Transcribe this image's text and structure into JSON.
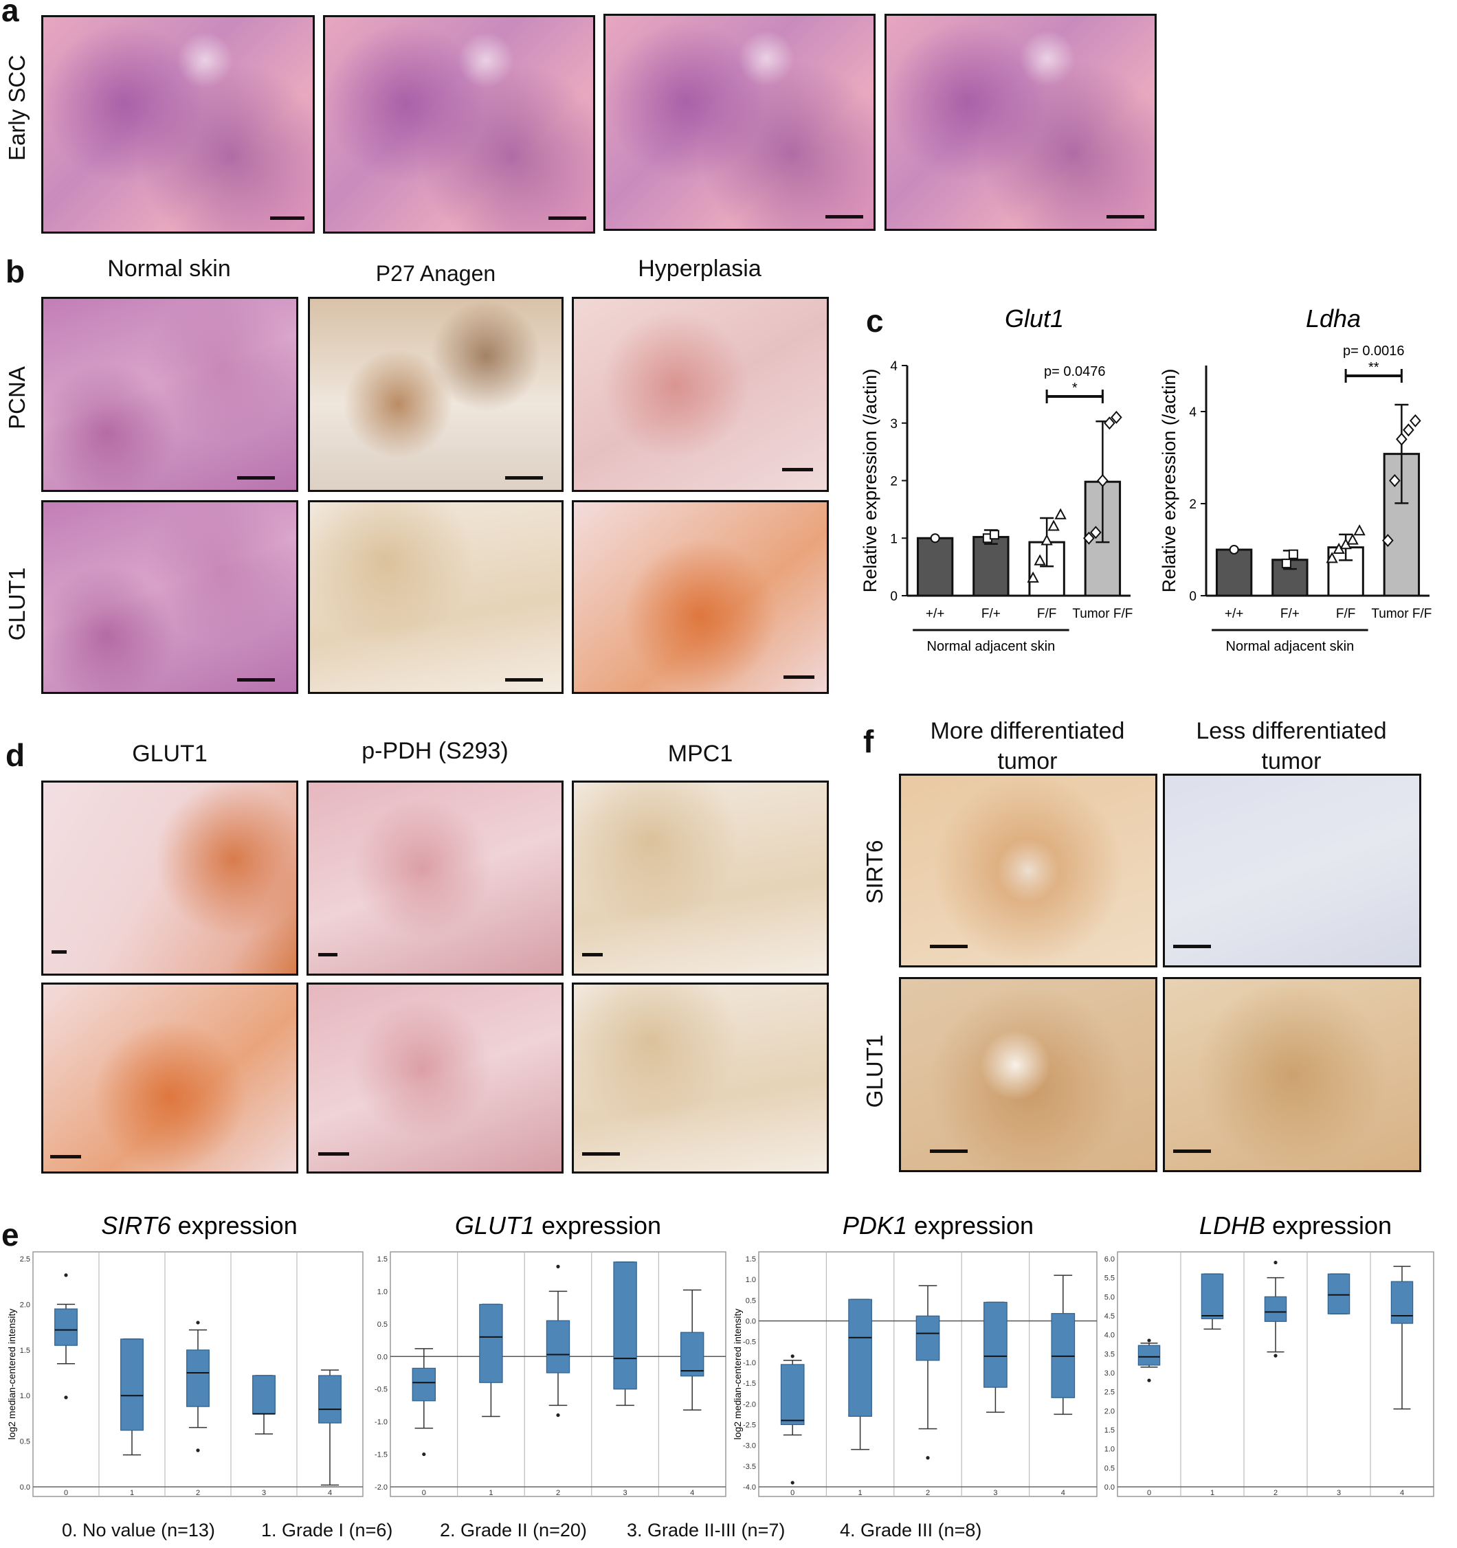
{
  "panels": {
    "a": {
      "label": "a",
      "row_label": "Early SCC"
    },
    "b": {
      "label": "b",
      "columns": [
        "Normal skin",
        "P27 Anagen",
        "Hyperplasia"
      ],
      "rows": [
        "PCNA",
        "GLUT1"
      ]
    },
    "c": {
      "label": "c"
    },
    "d": {
      "label": "d",
      "columns": [
        "GLUT1",
        "p-PDH (S293)",
        "MPC1"
      ]
    },
    "e": {
      "label": "e",
      "legend": [
        "0. No value (n=13)",
        "1. Grade I (n=6)",
        "2. Grade II (n=20)",
        "3. Grade II-III (n=7)",
        "4. Grade III (n=8)"
      ]
    },
    "f": {
      "label": "f",
      "columns": [
        "More differentiated tumor",
        "Less differentiated tumor"
      ],
      "rows": [
        "SIRT6",
        "GLUT1"
      ]
    }
  },
  "colors": {
    "dark_bar": "#555555",
    "white_bar": "#ffffff",
    "tumor_bar": "#bcbcbc",
    "box_fill": "#4e86b8"
  },
  "chart_data": [
    {
      "type": "bar",
      "gene": "Glut1",
      "ylabel": "Relative expression (/actin)",
      "categories": [
        "+/+",
        "F/+",
        "F/F",
        "Tumor F/F"
      ],
      "group_label": "Normal adjacent skin",
      "values": [
        1.0,
        1.02,
        0.93,
        1.98
      ],
      "errors": [
        0,
        0.12,
        0.42,
        1.05
      ],
      "ylim": [
        0,
        4
      ],
      "yticks": [
        "0",
        "1",
        "2",
        "3",
        "4"
      ],
      "points": [
        [
          1.0
        ],
        [
          1.0,
          1.06
        ],
        [
          0.3,
          0.6,
          0.95,
          1.2,
          1.4
        ],
        [
          1.0,
          1.1,
          2.0,
          3.0,
          3.1
        ]
      ],
      "pvalue": "p= 0.0476",
      "stars": "*"
    },
    {
      "type": "bar",
      "gene": "Ldha",
      "ylabel": "Relative expression (/actin)",
      "categories": [
        "+/+",
        "F/+",
        "F/F",
        "Tumor F/F"
      ],
      "group_label": "Normal adjacent skin",
      "values": [
        1.0,
        0.78,
        1.05,
        3.08
      ],
      "errors": [
        0,
        0.2,
        0.28,
        1.07
      ],
      "ylim": [
        0,
        5
      ],
      "yticks": [
        "0",
        "2",
        "4"
      ],
      "points": [
        [
          1.0
        ],
        [
          0.7,
          0.9
        ],
        [
          0.8,
          1.0,
          1.1,
          1.2,
          1.4
        ],
        [
          1.2,
          2.5,
          3.4,
          3.6,
          3.8
        ]
      ],
      "pvalue": "p= 0.0016",
      "stars": "**"
    },
    {
      "type": "box",
      "gene": "SIRT6",
      "title_suffix": " expression",
      "ylabel": "log2 median-centered intensity",
      "ylim": [
        0,
        2.5
      ],
      "yticks": [
        "0.0",
        "0.5",
        "1.0",
        "1.5",
        "2.0",
        "2.5"
      ],
      "categories": [
        "0",
        "1",
        "2",
        "3",
        "4"
      ],
      "boxes": [
        {
          "min": 1.35,
          "q1": 1.55,
          "median": 1.72,
          "q3": 1.95,
          "max": 2.0,
          "outliers": [
            0.98,
            2.32
          ]
        },
        {
          "min": 0.35,
          "q1": 0.62,
          "median": 1.0,
          "q3": 1.62,
          "max": 1.62,
          "outliers": []
        },
        {
          "min": 0.65,
          "q1": 0.88,
          "median": 1.25,
          "q3": 1.5,
          "max": 1.72,
          "outliers": [
            0.4,
            1.8
          ]
        },
        {
          "min": 0.58,
          "q1": 0.8,
          "median": 0.8,
          "q3": 1.22,
          "max": 1.22,
          "outliers": []
        },
        {
          "min": 0.02,
          "q1": 0.7,
          "median": 0.85,
          "q3": 1.22,
          "max": 1.28,
          "outliers": []
        }
      ]
    },
    {
      "type": "box",
      "gene": "GLUT1",
      "title_suffix": " expression",
      "ylabel": "",
      "ylim": [
        -2.0,
        1.5
      ],
      "yticks": [
        "-2.0",
        "-1.5",
        "-1.0",
        "-0.5",
        "0.0",
        "0.5",
        "1.0",
        "1.5"
      ],
      "zero_line": 0,
      "categories": [
        "0",
        "1",
        "2",
        "3",
        "4"
      ],
      "boxes": [
        {
          "min": -1.1,
          "q1": -0.68,
          "median": -0.4,
          "q3": -0.18,
          "max": 0.12,
          "outliers": [
            -1.5
          ]
        },
        {
          "min": -0.92,
          "q1": -0.4,
          "median": 0.3,
          "q3": 0.8,
          "max": 0.8,
          "outliers": []
        },
        {
          "min": -0.75,
          "q1": -0.25,
          "median": 0.03,
          "q3": 0.55,
          "max": 1.0,
          "outliers": [
            -0.9,
            1.38
          ]
        },
        {
          "min": -0.75,
          "q1": -0.5,
          "median": -0.03,
          "q3": 1.45,
          "max": 1.45,
          "outliers": []
        },
        {
          "min": -0.82,
          "q1": -0.3,
          "median": -0.22,
          "q3": 0.37,
          "max": 1.02,
          "outliers": []
        }
      ]
    },
    {
      "type": "box",
      "gene": "PDK1",
      "title_suffix": " expression",
      "ylabel": "log2 median-centered intensity",
      "ylim": [
        -4.0,
        1.5
      ],
      "yticks": [
        "-4.0",
        "-3.5",
        "-3.0",
        "-2.5",
        "-2.0",
        "-1.5",
        "-1.0",
        "-0.5",
        "0.0",
        "0.5",
        "1.0",
        "1.5"
      ],
      "zero_line": 0,
      "categories": [
        "0",
        "1",
        "2",
        "3",
        "4"
      ],
      "boxes": [
        {
          "min": -2.75,
          "q1": -2.5,
          "median": -2.4,
          "q3": -1.05,
          "max": -0.95,
          "outliers": [
            -3.9,
            -0.85
          ]
        },
        {
          "min": -3.1,
          "q1": -2.3,
          "median": -0.4,
          "q3": 0.52,
          "max": 0.52,
          "outliers": []
        },
        {
          "min": -2.6,
          "q1": -0.95,
          "median": -0.3,
          "q3": 0.12,
          "max": 0.85,
          "outliers": [
            -3.3
          ]
        },
        {
          "min": -2.2,
          "q1": -1.6,
          "median": -0.85,
          "q3": 0.45,
          "max": 0.45,
          "outliers": []
        },
        {
          "min": -2.25,
          "q1": -1.85,
          "median": -0.85,
          "q3": 0.18,
          "max": 1.1,
          "outliers": []
        }
      ]
    },
    {
      "type": "box",
      "gene": "LDHB",
      "title_suffix": " expression",
      "ylabel": "",
      "ylim": [
        0.0,
        6.0
      ],
      "yticks": [
        "0.0",
        "0.5",
        "1.0",
        "1.5",
        "2.0",
        "2.5",
        "3.0",
        "3.5",
        "4.0",
        "4.5",
        "5.0",
        "5.5",
        "6.0"
      ],
      "categories": [
        "0",
        "1",
        "2",
        "3",
        "4"
      ],
      "boxes": [
        {
          "min": 3.15,
          "q1": 3.2,
          "median": 3.42,
          "q3": 3.72,
          "max": 3.78,
          "outliers": [
            2.8,
            3.85
          ]
        },
        {
          "min": 4.15,
          "q1": 4.42,
          "median": 4.5,
          "q3": 5.6,
          "max": 5.6,
          "outliers": []
        },
        {
          "min": 3.55,
          "q1": 4.35,
          "median": 4.6,
          "q3": 5.0,
          "max": 5.5,
          "outliers": [
            3.45,
            5.9
          ]
        },
        {
          "min": 4.55,
          "q1": 4.55,
          "median": 5.05,
          "q3": 5.6,
          "max": 5.6,
          "outliers": []
        },
        {
          "min": 2.05,
          "q1": 4.3,
          "median": 4.5,
          "q3": 5.4,
          "max": 5.8,
          "outliers": []
        }
      ]
    }
  ]
}
